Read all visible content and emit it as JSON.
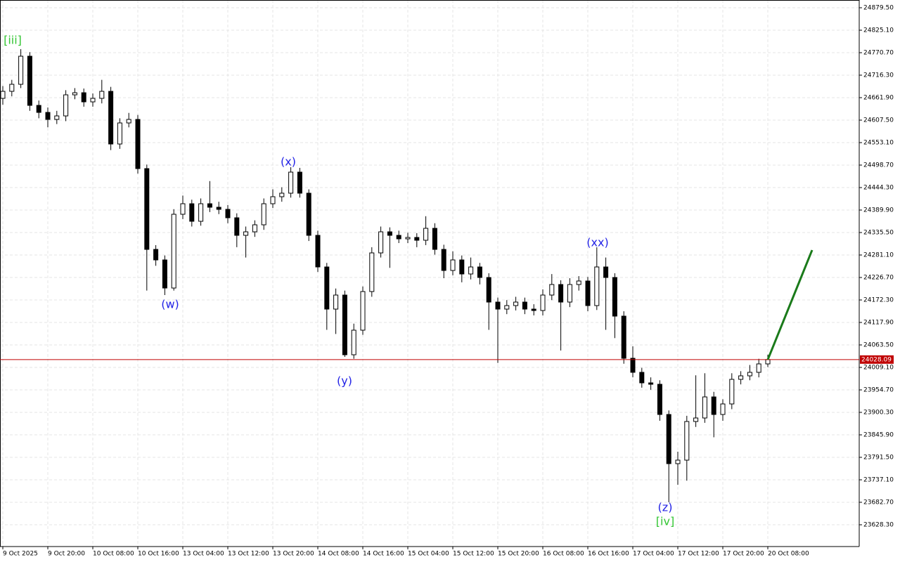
{
  "chart_data": {
    "type": "candlestick",
    "categories": [
      "9 Oct 2025",
      null,
      null,
      null,
      null,
      "9 Oct 20:00",
      null,
      null,
      null,
      null,
      "10 Oct 08:00",
      null,
      null,
      null,
      null,
      "10 Oct 16:00",
      null,
      null,
      null,
      null,
      "13 Oct 04:00",
      null,
      null,
      null,
      null,
      "13 Oct 12:00",
      null,
      null,
      null,
      null,
      "13 Oct 20:00",
      null,
      null,
      null,
      null,
      "14 Oct 08:00",
      null,
      null,
      null,
      null,
      "14 Oct 16:00",
      null,
      null,
      null,
      null,
      "15 Oct 04:00",
      null,
      null,
      null,
      null,
      "15 Oct 12:00",
      null,
      null,
      null,
      null,
      "15 Oct 20:00",
      null,
      null,
      null,
      null,
      "16 Oct 08:00",
      null,
      null,
      null,
      null,
      "16 Oct 16:00",
      null,
      null,
      null,
      null,
      "17 Oct 04:00",
      null,
      null,
      null,
      null,
      "17 Oct 12:00",
      null,
      null,
      null,
      null,
      "17 Oct 20:00",
      null,
      null,
      null,
      null,
      "20 Oct 08:00"
    ],
    "ohlc": [
      [
        24660.2,
        24690.0,
        24645.0,
        24677.2
      ],
      [
        24677.2,
        24705.0,
        24665.0,
        24694.2
      ],
      [
        24694.2,
        24779.2,
        24685.0,
        24762.2
      ],
      [
        24762.2,
        24772.0,
        24630.0,
        24643.2
      ],
      [
        24643.2,
        24655.0,
        24612.0,
        24626.2
      ],
      [
        24626.2,
        24638.0,
        24590.0,
        24609.2
      ],
      [
        24609.2,
        24630.0,
        24598.0,
        24617.7
      ],
      [
        24617.7,
        24680.0,
        24605.0,
        24668.7
      ],
      [
        24668.7,
        24685.0,
        24658.0,
        24673.8
      ],
      [
        24673.8,
        24684.0,
        24640.0,
        24651.7
      ],
      [
        24651.7,
        24672.0,
        24640.0,
        24660.2
      ],
      [
        24660.2,
        24705.0,
        24648.0,
        24677.2
      ],
      [
        24677.2,
        24688.0,
        24535.0,
        24549.7
      ],
      [
        24549.7,
        24612.0,
        24538.0,
        24600.7
      ],
      [
        24600.7,
        24625.0,
        24590.0,
        24609.2
      ],
      [
        24609.2,
        24620.0,
        24478.0,
        24490.2
      ],
      [
        24490.2,
        24500.0,
        24195.0,
        24294.7
      ],
      [
        24294.7,
        24305.0,
        24255.0,
        24269.2
      ],
      [
        24269.2,
        24280.0,
        24184.2,
        24201.2
      ],
      [
        24201.2,
        24392.0,
        24195.0,
        24379.7
      ],
      [
        24379.7,
        24425.0,
        24368.0,
        24405.2
      ],
      [
        24405.2,
        24415.0,
        24350.0,
        24362.7
      ],
      [
        24362.7,
        24418.0,
        24352.0,
        24405.2
      ],
      [
        24405.2,
        24460.0,
        24385.0,
        24396.7
      ],
      [
        24396.7,
        24410.0,
        24380.0,
        24391.6
      ],
      [
        24391.6,
        24402.0,
        24358.0,
        24371.2
      ],
      [
        24371.2,
        24382.0,
        24300.0,
        24328.7
      ],
      [
        24328.7,
        24350.0,
        24275.0,
        24337.2
      ],
      [
        24337.2,
        24365.0,
        24325.0,
        24354.2
      ],
      [
        24354.2,
        24418.0,
        24342.0,
        24405.2
      ],
      [
        24405.2,
        24440.0,
        24395.0,
        24422.2
      ],
      [
        24422.2,
        24445.0,
        24410.0,
        24430.7
      ],
      [
        24430.7,
        24493.6,
        24420.0,
        24481.7
      ],
      [
        24481.7,
        24492.0,
        24420.0,
        24430.7
      ],
      [
        24430.7,
        24440.0,
        24315.0,
        24328.7
      ],
      [
        24328.7,
        24340.0,
        24240.0,
        24252.2
      ],
      [
        24252.2,
        24262.0,
        24100.0,
        24150.2
      ],
      [
        24150.2,
        24200.0,
        24090.0,
        24184.2
      ],
      [
        24184.2,
        24195.0,
        24034.6,
        24039.7
      ],
      [
        24039.7,
        24115.0,
        24030.0,
        24099.2
      ],
      [
        24099.2,
        24205.0,
        24088.0,
        24192.7
      ],
      [
        24192.7,
        24300.0,
        24180.0,
        24286.2
      ],
      [
        24286.2,
        24350.0,
        24275.0,
        24337.2
      ],
      [
        24337.2,
        24348.0,
        24250.0,
        24328.7
      ],
      [
        24328.7,
        24340.0,
        24310.0,
        24320.2
      ],
      [
        24320.2,
        24335.0,
        24310.0,
        24323.6
      ],
      [
        24323.6,
        24334.0,
        24300.0,
        24316.8
      ],
      [
        24316.8,
        24375.0,
        24305.0,
        24345.7
      ],
      [
        24345.7,
        24358.0,
        24282.0,
        24294.7
      ],
      [
        24294.7,
        24306.0,
        24225.0,
        24243.7
      ],
      [
        24243.7,
        24290.0,
        24232.0,
        24269.2
      ],
      [
        24269.2,
        24280.0,
        24215.0,
        24235.2
      ],
      [
        24235.2,
        24275.0,
        24222.0,
        24252.2
      ],
      [
        24252.2,
        24262.0,
        24210.0,
        24226.7
      ],
      [
        24226.7,
        24237.0,
        24100.0,
        24167.2
      ],
      [
        24167.2,
        24178.0,
        24020.0,
        24150.2
      ],
      [
        24150.2,
        24172.0,
        24138.0,
        24158.7
      ],
      [
        24158.7,
        24180.0,
        24147.0,
        24167.2
      ],
      [
        24167.2,
        24178.0,
        24138.0,
        24150.2
      ],
      [
        24150.2,
        24162.0,
        24135.0,
        24146.8
      ],
      [
        24146.8,
        24198.0,
        24135.0,
        24184.2
      ],
      [
        24184.2,
        24235.0,
        24172.0,
        24209.7
      ],
      [
        24209.7,
        24220.0,
        24050.0,
        24167.2
      ],
      [
        24167.2,
        24225.0,
        24155.0,
        24209.7
      ],
      [
        24209.7,
        24230.0,
        24195.0,
        24218.2
      ],
      [
        24218.2,
        24228.0,
        24145.0,
        24158.7
      ],
      [
        24158.7,
        24299.8,
        24148.0,
        24252.2
      ],
      [
        24252.2,
        24275.0,
        24100.0,
        24226.7
      ],
      [
        24226.7,
        24237.0,
        24080.0,
        24133.2
      ],
      [
        24133.2,
        24145.0,
        24018.0,
        24031.2
      ],
      [
        24031.2,
        24060.0,
        23985.0,
        23997.2
      ],
      [
        23997.2,
        24008.0,
        23960.0,
        23971.7
      ],
      [
        23971.7,
        23985.0,
        23955.0,
        23968.3
      ],
      [
        23968.3,
        23978.0,
        23880.0,
        23895.2
      ],
      [
        23895.2,
        23905.0,
        23682.7,
        23776.2
      ],
      [
        23776.2,
        23805.0,
        23725.0,
        23784.7
      ],
      [
        23784.7,
        23892.0,
        23735.0,
        23878.2
      ],
      [
        23878.2,
        23990.0,
        23865.0,
        23886.7
      ],
      [
        23886.7,
        23995.0,
        23875.0,
        23937.7
      ],
      [
        23937.7,
        23950.0,
        23840.0,
        23895.2
      ],
      [
        23895.2,
        23932.0,
        23880.0,
        23920.7
      ],
      [
        23920.7,
        23995.0,
        23908.0,
        23980.2
      ],
      [
        23980.2,
        24000.0,
        23968.0,
        23988.7
      ],
      [
        23988.7,
        24015.0,
        23978.0,
        23997.2
      ],
      [
        23997.2,
        24030.0,
        23985.0,
        24017.6
      ],
      [
        24017.6,
        24040.0,
        24010.0,
        24028.1
      ]
    ],
    "ylim": [
      23575.6,
      24898.2
    ],
    "yticks": [
      {
        "value": 24879.5,
        "label": "24879.50"
      },
      {
        "value": 24825.1,
        "label": "24825.10"
      },
      {
        "value": 24770.7,
        "label": "24770.70"
      },
      {
        "value": 24716.3,
        "label": "24716.30"
      },
      {
        "value": 24661.9,
        "label": "24661.90"
      },
      {
        "value": 24607.5,
        "label": "24607.50"
      },
      {
        "value": 24553.1,
        "label": "24553.10"
      },
      {
        "value": 24498.7,
        "label": "24498.70"
      },
      {
        "value": 24444.3,
        "label": "24444.30"
      },
      {
        "value": 24389.9,
        "label": "24389.90"
      },
      {
        "value": 24335.5,
        "label": "24335.50"
      },
      {
        "value": 24281.1,
        "label": "24281.10"
      },
      {
        "value": 24226.7,
        "label": "24226.70"
      },
      {
        "value": 24172.3,
        "label": "24172.30"
      },
      {
        "value": 24117.9,
        "label": "24117.90"
      },
      {
        "value": 24063.5,
        "label": "24063.50"
      },
      {
        "value": 24009.1,
        "label": "24009.10"
      },
      {
        "value": 23954.7,
        "label": "23954.70"
      },
      {
        "value": 23900.3,
        "label": "23900.30"
      },
      {
        "value": 23845.9,
        "label": "23845.90"
      },
      {
        "value": 23791.5,
        "label": "23791.50"
      },
      {
        "value": 23737.1,
        "label": "23737.10"
      },
      {
        "value": 23682.7,
        "label": "23682.70"
      },
      {
        "value": 23628.3,
        "label": "23628.30"
      }
    ],
    "grid": true,
    "current_price": {
      "value": 24028.09,
      "label": "24028.09",
      "color": "#c00000"
    },
    "projection": {
      "color": "#1a7a1a",
      "values": [
        24028.1,
        24293.0
      ]
    },
    "annotations": [
      "[iii]",
      "(w)",
      "(x)",
      "(y)",
      "(xx)",
      "(z)",
      "[iv]"
    ],
    "annotation_colors": [
      "#33c633",
      "#2323e6",
      "#2323e6",
      "#2323e6",
      "#2323e6",
      "#2323e6",
      "#33c633"
    ]
  }
}
